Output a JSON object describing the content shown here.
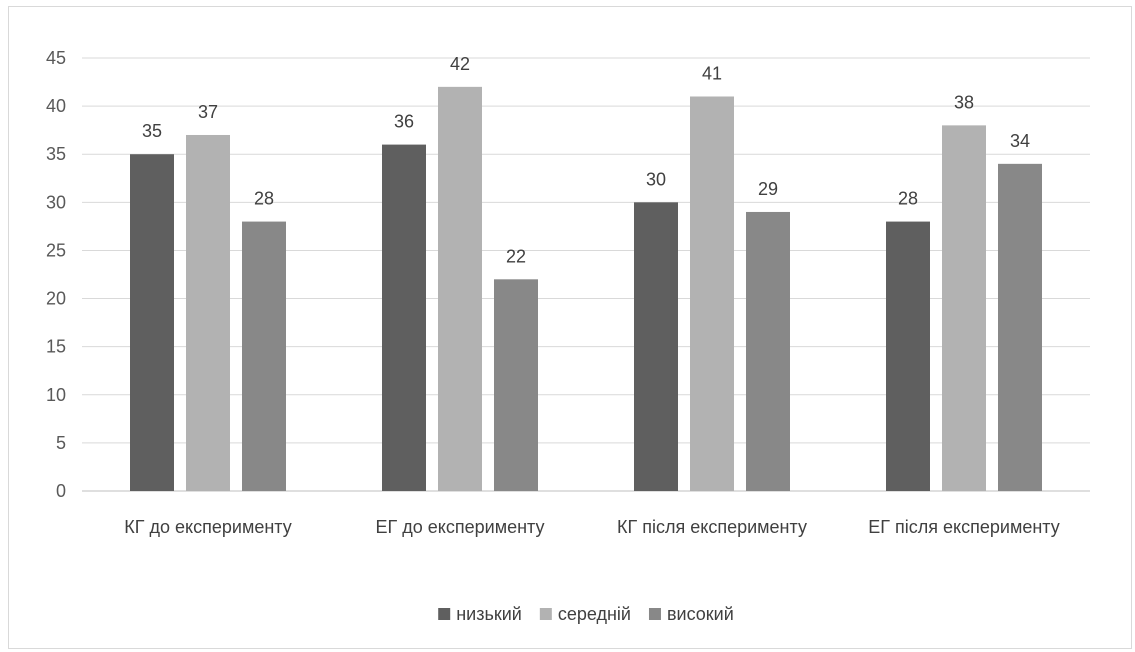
{
  "chart_data": {
    "type": "bar",
    "title": "",
    "xlabel": "",
    "ylabel": "",
    "ylim": [
      0,
      45
    ],
    "yticks": [
      0,
      5,
      10,
      15,
      20,
      25,
      30,
      35,
      40,
      45
    ],
    "grid": true,
    "legend_position": "bottom",
    "categories": [
      "КГ до експерименту",
      "ЕГ до експерименту",
      "КГ після експерименту",
      "ЕГ після експерименту"
    ],
    "series": [
      {
        "name": "низький",
        "values": [
          35,
          36,
          30,
          28
        ],
        "color": "#5f5f5f"
      },
      {
        "name": "середній",
        "values": [
          37,
          42,
          41,
          38
        ],
        "color": "#b2b2b2"
      },
      {
        "name": "високий",
        "values": [
          28,
          22,
          29,
          34
        ],
        "color": "#888888"
      }
    ]
  }
}
